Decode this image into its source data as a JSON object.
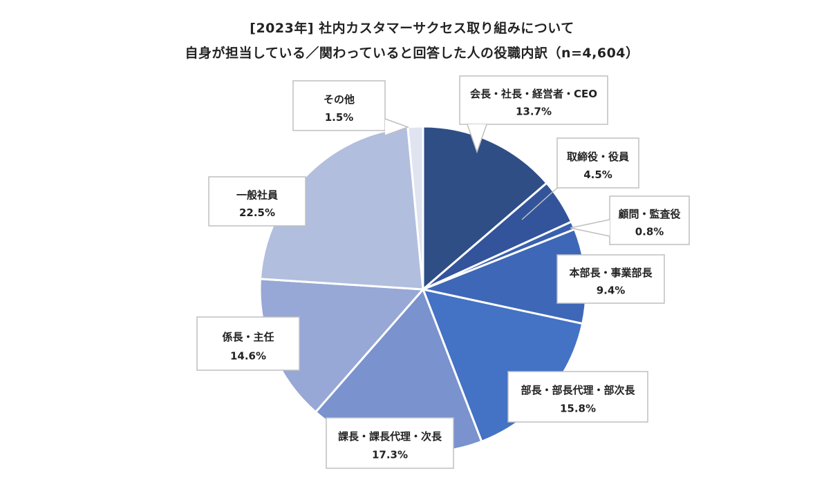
{
  "chart_data": {
    "type": "pie",
    "title": "[2023年] 社内カスタマーサクセス取り組みについて",
    "subtitle": "自身が担当している／関わっていると回答した人の役職内訳（n=4,604）",
    "sample_size_label": "n=4,604",
    "start_angle_deg": 0,
    "direction": "clockwise",
    "slices": [
      {
        "label": "会長・社長・経営者・CEO",
        "value": 13.7,
        "value_label": "13.7%",
        "color": "#2f4e86"
      },
      {
        "label": "取締役・役員",
        "value": 4.5,
        "value_label": "4.5%",
        "color": "#33549a"
      },
      {
        "label": "顧問・監査役",
        "value": 0.8,
        "value_label": "0.8%",
        "color": "#3a60ad"
      },
      {
        "label": "本部長・事業部長",
        "value": 9.4,
        "value_label": "9.4%",
        "color": "#3f67b7"
      },
      {
        "label": "部長・部長代理・部次長",
        "value": 15.8,
        "value_label": "15.8%",
        "color": "#4472c4"
      },
      {
        "label": "課長・課長代理・次長",
        "value": 17.3,
        "value_label": "17.3%",
        "color": "#7a92cd"
      },
      {
        "label": "係長・主任",
        "value": 14.6,
        "value_label": "14.6%",
        "color": "#97a8d6"
      },
      {
        "label": "一般社員",
        "value": 22.5,
        "value_label": "22.5%",
        "color": "#b1bede"
      },
      {
        "label": "その他",
        "value": 1.5,
        "value_label": "1.5%",
        "color": "#dfe4f0"
      }
    ]
  }
}
